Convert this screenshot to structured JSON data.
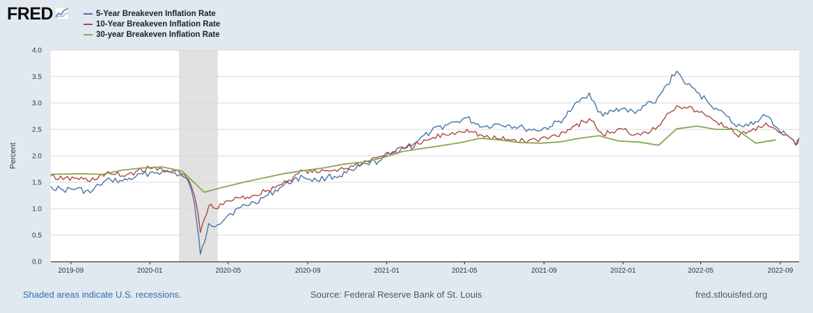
{
  "header": {
    "logo_text": "FRED",
    "logo_icon": "line-chart-icon"
  },
  "footer": {
    "recession_note": "Shaded areas indicate U.S. recessions.",
    "source": "Source: Federal Reserve Bank of St. Louis",
    "site": "fred.stlouisfed.org"
  },
  "chart_data": {
    "type": "line",
    "ylabel": "Percent",
    "ylim": [
      0,
      4
    ],
    "yticks": [
      "0.0",
      "0.5",
      "1.0",
      "1.5",
      "2.0",
      "2.5",
      "3.0",
      "3.5",
      "4.0"
    ],
    "xlim": [
      "2019-08-01",
      "2022-09-30"
    ],
    "xticks": [
      "2019-09",
      "2020-01",
      "2020-05",
      "2020-09",
      "2021-01",
      "2021-05",
      "2021-09",
      "2022-01",
      "2022-05",
      "2022-09"
    ],
    "grid": "horizontal",
    "legend_position": "top-left",
    "recession": [
      "2020-02-15",
      "2020-04-15"
    ],
    "series": [
      {
        "name": "5-Year Breakeven Inflation Rate",
        "color": "#4572a7",
        "x": [
          "2019-08-01",
          "2019-08-20",
          "2019-09-10",
          "2019-10-01",
          "2019-10-15",
          "2019-11-01",
          "2019-11-20",
          "2019-12-10",
          "2020-01-01",
          "2020-01-20",
          "2020-02-05",
          "2020-02-20",
          "2020-03-01",
          "2020-03-10",
          "2020-03-15",
          "2020-03-19",
          "2020-03-25",
          "2020-04-01",
          "2020-04-15",
          "2020-05-01",
          "2020-05-20",
          "2020-06-10",
          "2020-07-01",
          "2020-07-20",
          "2020-08-10",
          "2020-08-25",
          "2020-09-15",
          "2020-10-01",
          "2020-10-20",
          "2020-11-10",
          "2020-12-01",
          "2020-12-20",
          "2021-01-10",
          "2021-02-01",
          "2021-02-20",
          "2021-03-10",
          "2021-04-01",
          "2021-04-20",
          "2021-05-05",
          "2021-05-15",
          "2021-06-01",
          "2021-06-20",
          "2021-07-10",
          "2021-08-01",
          "2021-08-20",
          "2021-09-10",
          "2021-10-01",
          "2021-10-15",
          "2021-11-01",
          "2021-11-10",
          "2021-11-20",
          "2021-12-01",
          "2021-12-15",
          "2022-01-01",
          "2022-01-20",
          "2022-02-01",
          "2022-02-20",
          "2022-03-10",
          "2022-03-25",
          "2022-04-10",
          "2022-04-25",
          "2022-05-10",
          "2022-05-25",
          "2022-06-10",
          "2022-06-25",
          "2022-07-10",
          "2022-07-25",
          "2022-08-10",
          "2022-08-25",
          "2022-09-10",
          "2022-09-25",
          "2022-09-30"
        ],
        "y": [
          1.42,
          1.35,
          1.38,
          1.3,
          1.45,
          1.55,
          1.52,
          1.6,
          1.68,
          1.7,
          1.68,
          1.62,
          1.5,
          1.1,
          0.6,
          0.14,
          0.35,
          0.72,
          0.7,
          0.88,
          1.02,
          1.12,
          1.25,
          1.4,
          1.55,
          1.6,
          1.53,
          1.6,
          1.62,
          1.72,
          1.85,
          1.9,
          2.05,
          2.18,
          2.3,
          2.45,
          2.58,
          2.65,
          2.72,
          2.63,
          2.55,
          2.6,
          2.58,
          2.52,
          2.48,
          2.55,
          2.7,
          2.9,
          3.1,
          3.19,
          2.95,
          2.75,
          2.85,
          2.9,
          2.8,
          2.95,
          3.0,
          3.35,
          3.6,
          3.35,
          3.2,
          3.05,
          2.9,
          2.75,
          2.55,
          2.6,
          2.65,
          2.75,
          2.55,
          2.4,
          2.2,
          2.34
        ]
      },
      {
        "name": "10-Year Breakeven Inflation Rate",
        "color": "#aa4643",
        "x": [
          "2019-08-01",
          "2019-08-20",
          "2019-09-10",
          "2019-10-01",
          "2019-10-15",
          "2019-11-01",
          "2019-11-20",
          "2019-12-10",
          "2020-01-01",
          "2020-01-20",
          "2020-02-05",
          "2020-02-20",
          "2020-03-01",
          "2020-03-10",
          "2020-03-15",
          "2020-03-19",
          "2020-03-25",
          "2020-04-01",
          "2020-04-15",
          "2020-05-01",
          "2020-05-20",
          "2020-06-10",
          "2020-07-01",
          "2020-07-20",
          "2020-08-10",
          "2020-08-25",
          "2020-09-15",
          "2020-10-01",
          "2020-10-20",
          "2020-11-10",
          "2020-12-01",
          "2020-12-20",
          "2021-01-10",
          "2021-02-01",
          "2021-02-20",
          "2021-03-10",
          "2021-04-01",
          "2021-04-20",
          "2021-05-05",
          "2021-05-15",
          "2021-06-01",
          "2021-06-20",
          "2021-07-10",
          "2021-08-01",
          "2021-08-20",
          "2021-09-10",
          "2021-10-01",
          "2021-10-15",
          "2021-11-01",
          "2021-11-10",
          "2021-11-20",
          "2021-12-01",
          "2021-12-15",
          "2022-01-01",
          "2022-01-20",
          "2022-02-01",
          "2022-02-20",
          "2022-03-10",
          "2022-03-25",
          "2022-04-10",
          "2022-04-25",
          "2022-05-10",
          "2022-05-25",
          "2022-06-10",
          "2022-06-25",
          "2022-07-10",
          "2022-07-25",
          "2022-08-10",
          "2022-08-25",
          "2022-09-10",
          "2022-09-25",
          "2022-09-30"
        ],
        "y": [
          1.62,
          1.55,
          1.58,
          1.52,
          1.62,
          1.66,
          1.62,
          1.7,
          1.76,
          1.75,
          1.72,
          1.65,
          1.55,
          1.25,
          0.95,
          0.55,
          0.8,
          1.05,
          1.0,
          1.15,
          1.2,
          1.25,
          1.35,
          1.45,
          1.6,
          1.72,
          1.68,
          1.72,
          1.75,
          1.8,
          1.9,
          1.98,
          2.08,
          2.15,
          2.22,
          2.32,
          2.4,
          2.45,
          2.5,
          2.45,
          2.35,
          2.32,
          2.3,
          2.28,
          2.3,
          2.35,
          2.45,
          2.55,
          2.65,
          2.7,
          2.55,
          2.4,
          2.45,
          2.5,
          2.4,
          2.45,
          2.5,
          2.8,
          2.95,
          2.9,
          2.85,
          2.75,
          2.65,
          2.55,
          2.4,
          2.42,
          2.48,
          2.62,
          2.5,
          2.4,
          2.2,
          2.3
        ]
      },
      {
        "name": "30-year Breakeven Inflation Rate",
        "color": "#89a54e",
        "x": [
          "2019-08-01",
          "2019-09-15",
          "2019-10-20",
          "2019-11-20",
          "2019-12-20",
          "2020-01-20",
          "2020-02-20",
          "2020-03-25",
          "2020-04-25",
          "2020-05-25",
          "2020-06-25",
          "2020-07-25",
          "2020-08-25",
          "2020-09-25",
          "2020-10-25",
          "2020-11-25",
          "2020-12-25",
          "2021-01-25",
          "2021-02-25",
          "2021-03-25",
          "2021-04-25",
          "2021-05-25",
          "2021-06-25",
          "2021-07-25",
          "2021-08-25",
          "2021-09-25",
          "2021-10-25",
          "2021-11-25",
          "2021-12-25",
          "2022-01-25",
          "2022-02-25",
          "2022-03-25",
          "2022-04-25",
          "2022-05-25",
          "2022-06-25",
          "2022-07-25",
          "2022-08-25"
        ],
        "y": [
          1.65,
          1.66,
          1.65,
          1.73,
          1.77,
          1.79,
          1.71,
          1.31,
          1.41,
          1.5,
          1.58,
          1.66,
          1.72,
          1.77,
          1.84,
          1.88,
          1.96,
          2.08,
          2.14,
          2.19,
          2.25,
          2.33,
          2.3,
          2.25,
          2.24,
          2.26,
          2.33,
          2.38,
          2.28,
          2.26,
          2.2,
          2.51,
          2.56,
          2.5,
          2.5,
          2.24,
          2.3
        ]
      }
    ]
  }
}
